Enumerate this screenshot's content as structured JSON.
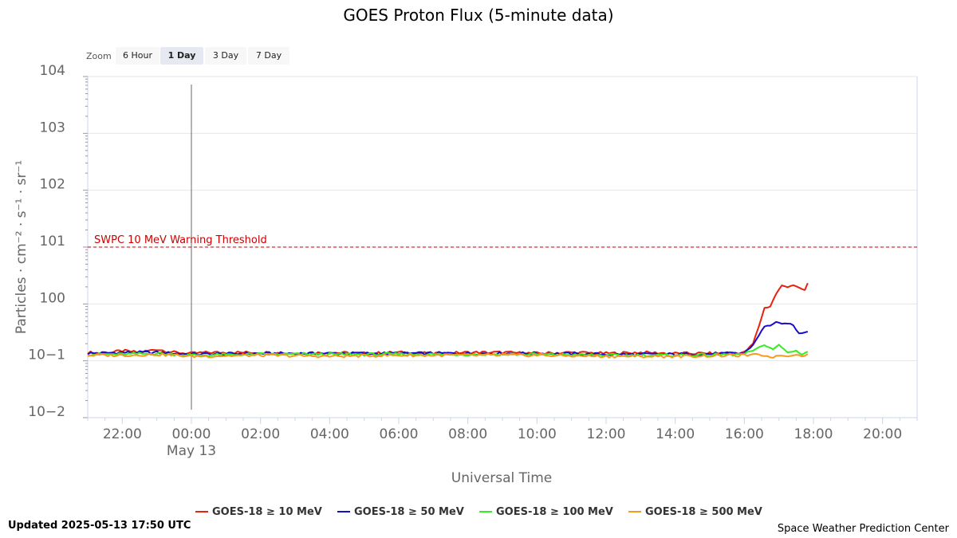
{
  "zoom": {
    "label": "Zoom",
    "buttons": [
      "6 Hour",
      "1 Day",
      "3 Day",
      "7 Day"
    ],
    "selected": "1 Day"
  },
  "footer": {
    "updated": "Updated 2025-05-13 17:50 UTC",
    "credit": "Space Weather Prediction Center"
  },
  "chart_data": {
    "type": "line",
    "title": "GOES Proton Flux (5-minute data)",
    "xlabel": "Universal Time",
    "ylabel": "Particles · cm⁻² · s⁻¹ · sr⁻¹",
    "y_scale": "log",
    "ylim": [
      0.01,
      10000
    ],
    "y_ticks": [
      {
        "value": 0.01,
        "base": "10",
        "exp": "−2"
      },
      {
        "value": 0.1,
        "base": "10",
        "exp": "−1"
      },
      {
        "value": 1,
        "base": "10",
        "exp": "0"
      },
      {
        "value": 10,
        "base": "10",
        "exp": "1"
      },
      {
        "value": 100,
        "base": "10",
        "exp": "2"
      },
      {
        "value": 1000,
        "base": "10",
        "exp": "3"
      },
      {
        "value": 10000,
        "base": "10",
        "exp": "4"
      }
    ],
    "xlim": [
      "2025-05-12 21:00",
      "2025-05-13 21:00"
    ],
    "x_ticks": [
      {
        "time": "2025-05-12 22:00",
        "label": "22:00"
      },
      {
        "time": "2025-05-13 00:00",
        "label": "00:00",
        "sublabel": "May 13"
      },
      {
        "time": "2025-05-13 02:00",
        "label": "02:00"
      },
      {
        "time": "2025-05-13 04:00",
        "label": "04:00"
      },
      {
        "time": "2025-05-13 06:00",
        "label": "06:00"
      },
      {
        "time": "2025-05-13 08:00",
        "label": "08:00"
      },
      {
        "time": "2025-05-13 10:00",
        "label": "10:00"
      },
      {
        "time": "2025-05-13 12:00",
        "label": "12:00"
      },
      {
        "time": "2025-05-13 14:00",
        "label": "14:00"
      },
      {
        "time": "2025-05-13 16:00",
        "label": "16:00"
      },
      {
        "time": "2025-05-13 18:00",
        "label": "18:00"
      },
      {
        "time": "2025-05-13 20:00",
        "label": "20:00"
      }
    ],
    "day_marker": "2025-05-13 00:00",
    "threshold": {
      "value": 10,
      "label": "SWPC 10 MeV Warning Threshold",
      "color": "#cc0000"
    },
    "grid": true,
    "legend_position": "bottom",
    "series": [
      {
        "name": "GOES-18 ≥ 10 MeV",
        "color": "#e8220f",
        "points": [
          [
            "2025-05-12 21:00",
            0.14
          ],
          [
            "2025-05-12 21:30",
            0.135
          ],
          [
            "2025-05-12 22:00",
            0.15
          ],
          [
            "2025-05-12 22:30",
            0.14
          ],
          [
            "2025-05-12 23:00",
            0.16
          ],
          [
            "2025-05-12 23:30",
            0.14
          ],
          [
            "2025-05-13 00:00",
            0.135
          ],
          [
            "2025-05-13 00:30",
            0.14
          ],
          [
            "2025-05-13 01:00",
            0.14
          ],
          [
            "2025-05-13 02:00",
            0.14
          ],
          [
            "2025-05-13 03:00",
            0.135
          ],
          [
            "2025-05-13 04:00",
            0.14
          ],
          [
            "2025-05-13 05:00",
            0.135
          ],
          [
            "2025-05-13 06:00",
            0.14
          ],
          [
            "2025-05-13 07:00",
            0.135
          ],
          [
            "2025-05-13 08:00",
            0.14
          ],
          [
            "2025-05-13 09:00",
            0.14
          ],
          [
            "2025-05-13 10:00",
            0.135
          ],
          [
            "2025-05-13 11:00",
            0.14
          ],
          [
            "2025-05-13 12:00",
            0.135
          ],
          [
            "2025-05-13 13:00",
            0.14
          ],
          [
            "2025-05-13 14:00",
            0.135
          ],
          [
            "2025-05-13 15:00",
            0.135
          ],
          [
            "2025-05-13 16:00",
            0.14
          ],
          [
            "2025-05-13 16:15",
            0.2
          ],
          [
            "2025-05-13 16:25",
            0.4
          ],
          [
            "2025-05-13 16:35",
            0.85
          ],
          [
            "2025-05-13 16:45",
            0.9
          ],
          [
            "2025-05-13 16:55",
            1.5
          ],
          [
            "2025-05-13 17:05",
            2.1
          ],
          [
            "2025-05-13 17:15",
            2.0
          ],
          [
            "2025-05-13 17:25",
            2.15
          ],
          [
            "2025-05-13 17:35",
            1.9
          ],
          [
            "2025-05-13 17:45",
            1.75
          ],
          [
            "2025-05-13 17:50",
            2.3
          ]
        ]
      },
      {
        "name": "GOES-18 ≥ 50 MeV",
        "color": "#1a0ccc",
        "points": [
          [
            "2025-05-12 21:00",
            0.135
          ],
          [
            "2025-05-12 22:00",
            0.14
          ],
          [
            "2025-05-12 23:00",
            0.14
          ],
          [
            "2025-05-13 00:00",
            0.13
          ],
          [
            "2025-05-13 02:00",
            0.135
          ],
          [
            "2025-05-13 04:00",
            0.135
          ],
          [
            "2025-05-13 06:00",
            0.135
          ],
          [
            "2025-05-13 08:00",
            0.135
          ],
          [
            "2025-05-13 10:00",
            0.135
          ],
          [
            "2025-05-13 12:00",
            0.13
          ],
          [
            "2025-05-13 14:00",
            0.13
          ],
          [
            "2025-05-13 16:00",
            0.135
          ],
          [
            "2025-05-13 16:15",
            0.19
          ],
          [
            "2025-05-13 16:25",
            0.28
          ],
          [
            "2025-05-13 16:35",
            0.4
          ],
          [
            "2025-05-13 16:45",
            0.42
          ],
          [
            "2025-05-13 16:55",
            0.48
          ],
          [
            "2025-05-13 17:05",
            0.44
          ],
          [
            "2025-05-13 17:15",
            0.46
          ],
          [
            "2025-05-13 17:25",
            0.42
          ],
          [
            "2025-05-13 17:35",
            0.3
          ],
          [
            "2025-05-13 17:45",
            0.32
          ],
          [
            "2025-05-13 17:50",
            0.33
          ]
        ]
      },
      {
        "name": "GOES-18 ≥ 100 MeV",
        "color": "#33ee22",
        "points": [
          [
            "2025-05-12 21:00",
            0.13
          ],
          [
            "2025-05-12 22:00",
            0.13
          ],
          [
            "2025-05-12 23:00",
            0.135
          ],
          [
            "2025-05-13 00:00",
            0.125
          ],
          [
            "2025-05-13 02:00",
            0.13
          ],
          [
            "2025-05-13 04:00",
            0.13
          ],
          [
            "2025-05-13 06:00",
            0.13
          ],
          [
            "2025-05-13 08:00",
            0.13
          ],
          [
            "2025-05-13 10:00",
            0.13
          ],
          [
            "2025-05-13 12:00",
            0.125
          ],
          [
            "2025-05-13 14:00",
            0.125
          ],
          [
            "2025-05-13 16:00",
            0.13
          ],
          [
            "2025-05-13 16:20",
            0.16
          ],
          [
            "2025-05-13 16:35",
            0.19
          ],
          [
            "2025-05-13 16:50",
            0.16
          ],
          [
            "2025-05-13 17:00",
            0.19
          ],
          [
            "2025-05-13 17:15",
            0.14
          ],
          [
            "2025-05-13 17:30",
            0.15
          ],
          [
            "2025-05-13 17:40",
            0.13
          ],
          [
            "2025-05-13 17:50",
            0.145
          ]
        ]
      },
      {
        "name": "GOES-18 ≥ 500 MeV",
        "color": "#f59a1e",
        "points": [
          [
            "2025-05-12 21:00",
            0.125
          ],
          [
            "2025-05-12 22:00",
            0.125
          ],
          [
            "2025-05-12 23:00",
            0.13
          ],
          [
            "2025-05-13 00:00",
            0.12
          ],
          [
            "2025-05-13 02:00",
            0.125
          ],
          [
            "2025-05-13 04:00",
            0.12
          ],
          [
            "2025-05-13 06:00",
            0.125
          ],
          [
            "2025-05-13 08:00",
            0.125
          ],
          [
            "2025-05-13 10:00",
            0.125
          ],
          [
            "2025-05-13 12:00",
            0.12
          ],
          [
            "2025-05-13 14:00",
            0.12
          ],
          [
            "2025-05-13 16:00",
            0.125
          ],
          [
            "2025-05-13 16:20",
            0.13
          ],
          [
            "2025-05-13 16:40",
            0.12
          ],
          [
            "2025-05-13 16:50",
            0.115
          ],
          [
            "2025-05-13 17:00",
            0.125
          ],
          [
            "2025-05-13 17:15",
            0.12
          ],
          [
            "2025-05-13 17:30",
            0.13
          ],
          [
            "2025-05-13 17:40",
            0.12
          ],
          [
            "2025-05-13 17:50",
            0.13
          ]
        ]
      }
    ]
  }
}
